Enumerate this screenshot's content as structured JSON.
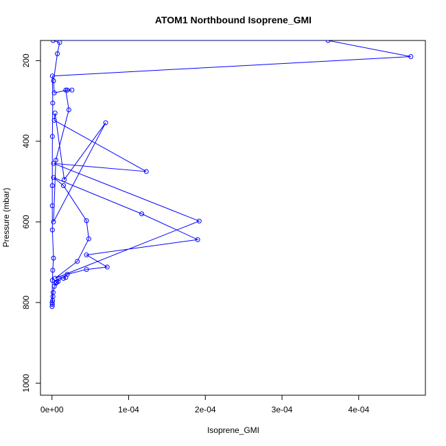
{
  "chart_data": {
    "type": "line",
    "title": "ATOM1 Northbound Isoprene_GMI",
    "xlabel": "Isoprene_GMI",
    "ylabel": "Pressure (mbar)",
    "xlim": [
      -1.5e-05,
      0.000487
    ],
    "ylim": [
      1030,
      150
    ],
    "y_reversed": true,
    "grid": false,
    "legend": "none",
    "x_ticks": [
      {
        "value": 0,
        "label": "0e+00"
      },
      {
        "value": 0.0001,
        "label": "1e-04"
      },
      {
        "value": 0.0002,
        "label": "2e-04"
      },
      {
        "value": 0.0003,
        "label": "3e-04"
      },
      {
        "value": 0.0004,
        "label": "4e-04"
      }
    ],
    "y_ticks": [
      {
        "value": 200,
        "label": "200"
      },
      {
        "value": 400,
        "label": "400"
      },
      {
        "value": 600,
        "label": "600"
      },
      {
        "value": 800,
        "label": "800"
      },
      {
        "value": 1000,
        "label": "1000"
      }
    ],
    "series": [
      {
        "color": "#0000ff",
        "marker": "open-circle",
        "points": [
          [
            2e-07,
            810
          ],
          [
            4e-07,
            805
          ],
          [
            8e-07,
            795
          ],
          [
            1.2e-06,
            785
          ],
          [
            1.5e-06,
            775
          ],
          [
            3e-06,
            760
          ],
          [
            5e-06,
            752
          ],
          [
            6e-06,
            750
          ],
          [
            8e-06,
            748
          ],
          [
            9e-06,
            740
          ],
          [
            1.8e-05,
            738
          ],
          [
            1.5e-05,
            740
          ],
          [
            2e-05,
            730
          ],
          [
            4.5e-05,
            718
          ],
          [
            7.2e-05,
            712
          ],
          [
            4.5e-05,
            682
          ],
          [
            0.00019,
            644
          ],
          [
            0.000117,
            580
          ],
          [
            2e-06,
            490
          ],
          [
            1.5e-05,
            510
          ],
          [
            4.5e-05,
            597
          ],
          [
            4.8e-05,
            642
          ],
          [
            3.3e-05,
            698
          ],
          [
            4e-06,
            740
          ],
          [
            0.000192,
            598
          ],
          [
            2e-06,
            455
          ],
          [
            0.000123,
            475
          ],
          [
            3e-06,
            348
          ],
          [
            4e-06,
            330
          ],
          [
            1.6e-05,
            495
          ],
          [
            7e-05,
            354
          ],
          [
            2e-06,
            600
          ],
          [
            5e-06,
            447
          ],
          [
            2.2e-05,
            322
          ],
          [
            1.8e-05,
            273
          ],
          [
            2.6e-05,
            273
          ],
          [
            2e-05,
            273
          ],
          [
            3e-06,
            280
          ],
          [
            2e-06,
            250
          ],
          [
            7e-06,
            183
          ],
          [
            1e-05,
            155
          ],
          [
            1.5e-06,
            150
          ],
          [
            0.00036,
            150
          ],
          [
            0.000468,
            190
          ],
          [
            5e-07,
            238
          ],
          [
            1e-06,
            305
          ],
          [
            5e-07,
            388
          ],
          [
            4e-07,
            510
          ],
          [
            4e-07,
            560
          ],
          [
            5e-07,
            620
          ],
          [
            2e-06,
            690
          ],
          [
            1e-06,
            720
          ],
          [
            5e-07,
            745
          ],
          [
            2e-07,
            800
          ]
        ]
      }
    ]
  }
}
